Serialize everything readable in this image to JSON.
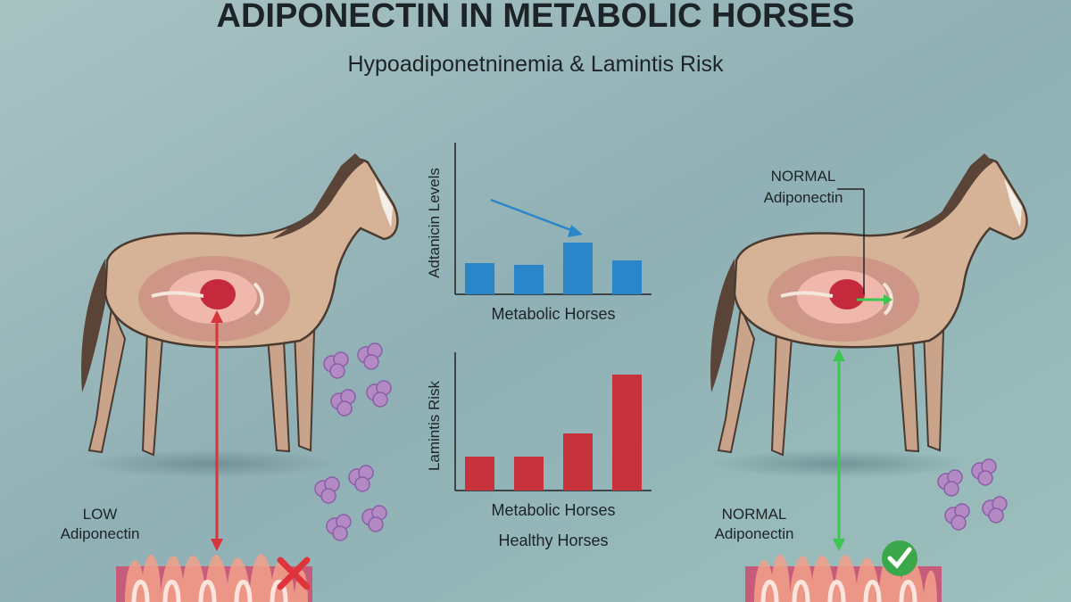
{
  "header": {
    "title": "ADIPONECTIN IN METABOLIC HORSES",
    "subtitle": "Hypoadiponetninemia & Lamintis Risk"
  },
  "left_horse": {
    "label": [
      "LOW",
      "Adiponectin"
    ]
  },
  "right_horse": {
    "callout": [
      "NORMAL",
      "Adiponectin"
    ],
    "label": [
      "NORMAL",
      "Adiponectin"
    ]
  },
  "charts": [
    {
      "type": "bar",
      "y_label": "Adtanicin Levels",
      "x_labels": [
        "Metabolic Horses"
      ],
      "values": [
        35,
        33,
        58,
        38
      ],
      "color": "#2a86c8"
    },
    {
      "type": "bar",
      "y_label": "Lamintis Risk",
      "x_labels": [
        "Metabolic Horses",
        "Healthy Horses"
      ],
      "values": [
        38,
        38,
        64,
        130
      ],
      "color": "#c8323c"
    }
  ]
}
